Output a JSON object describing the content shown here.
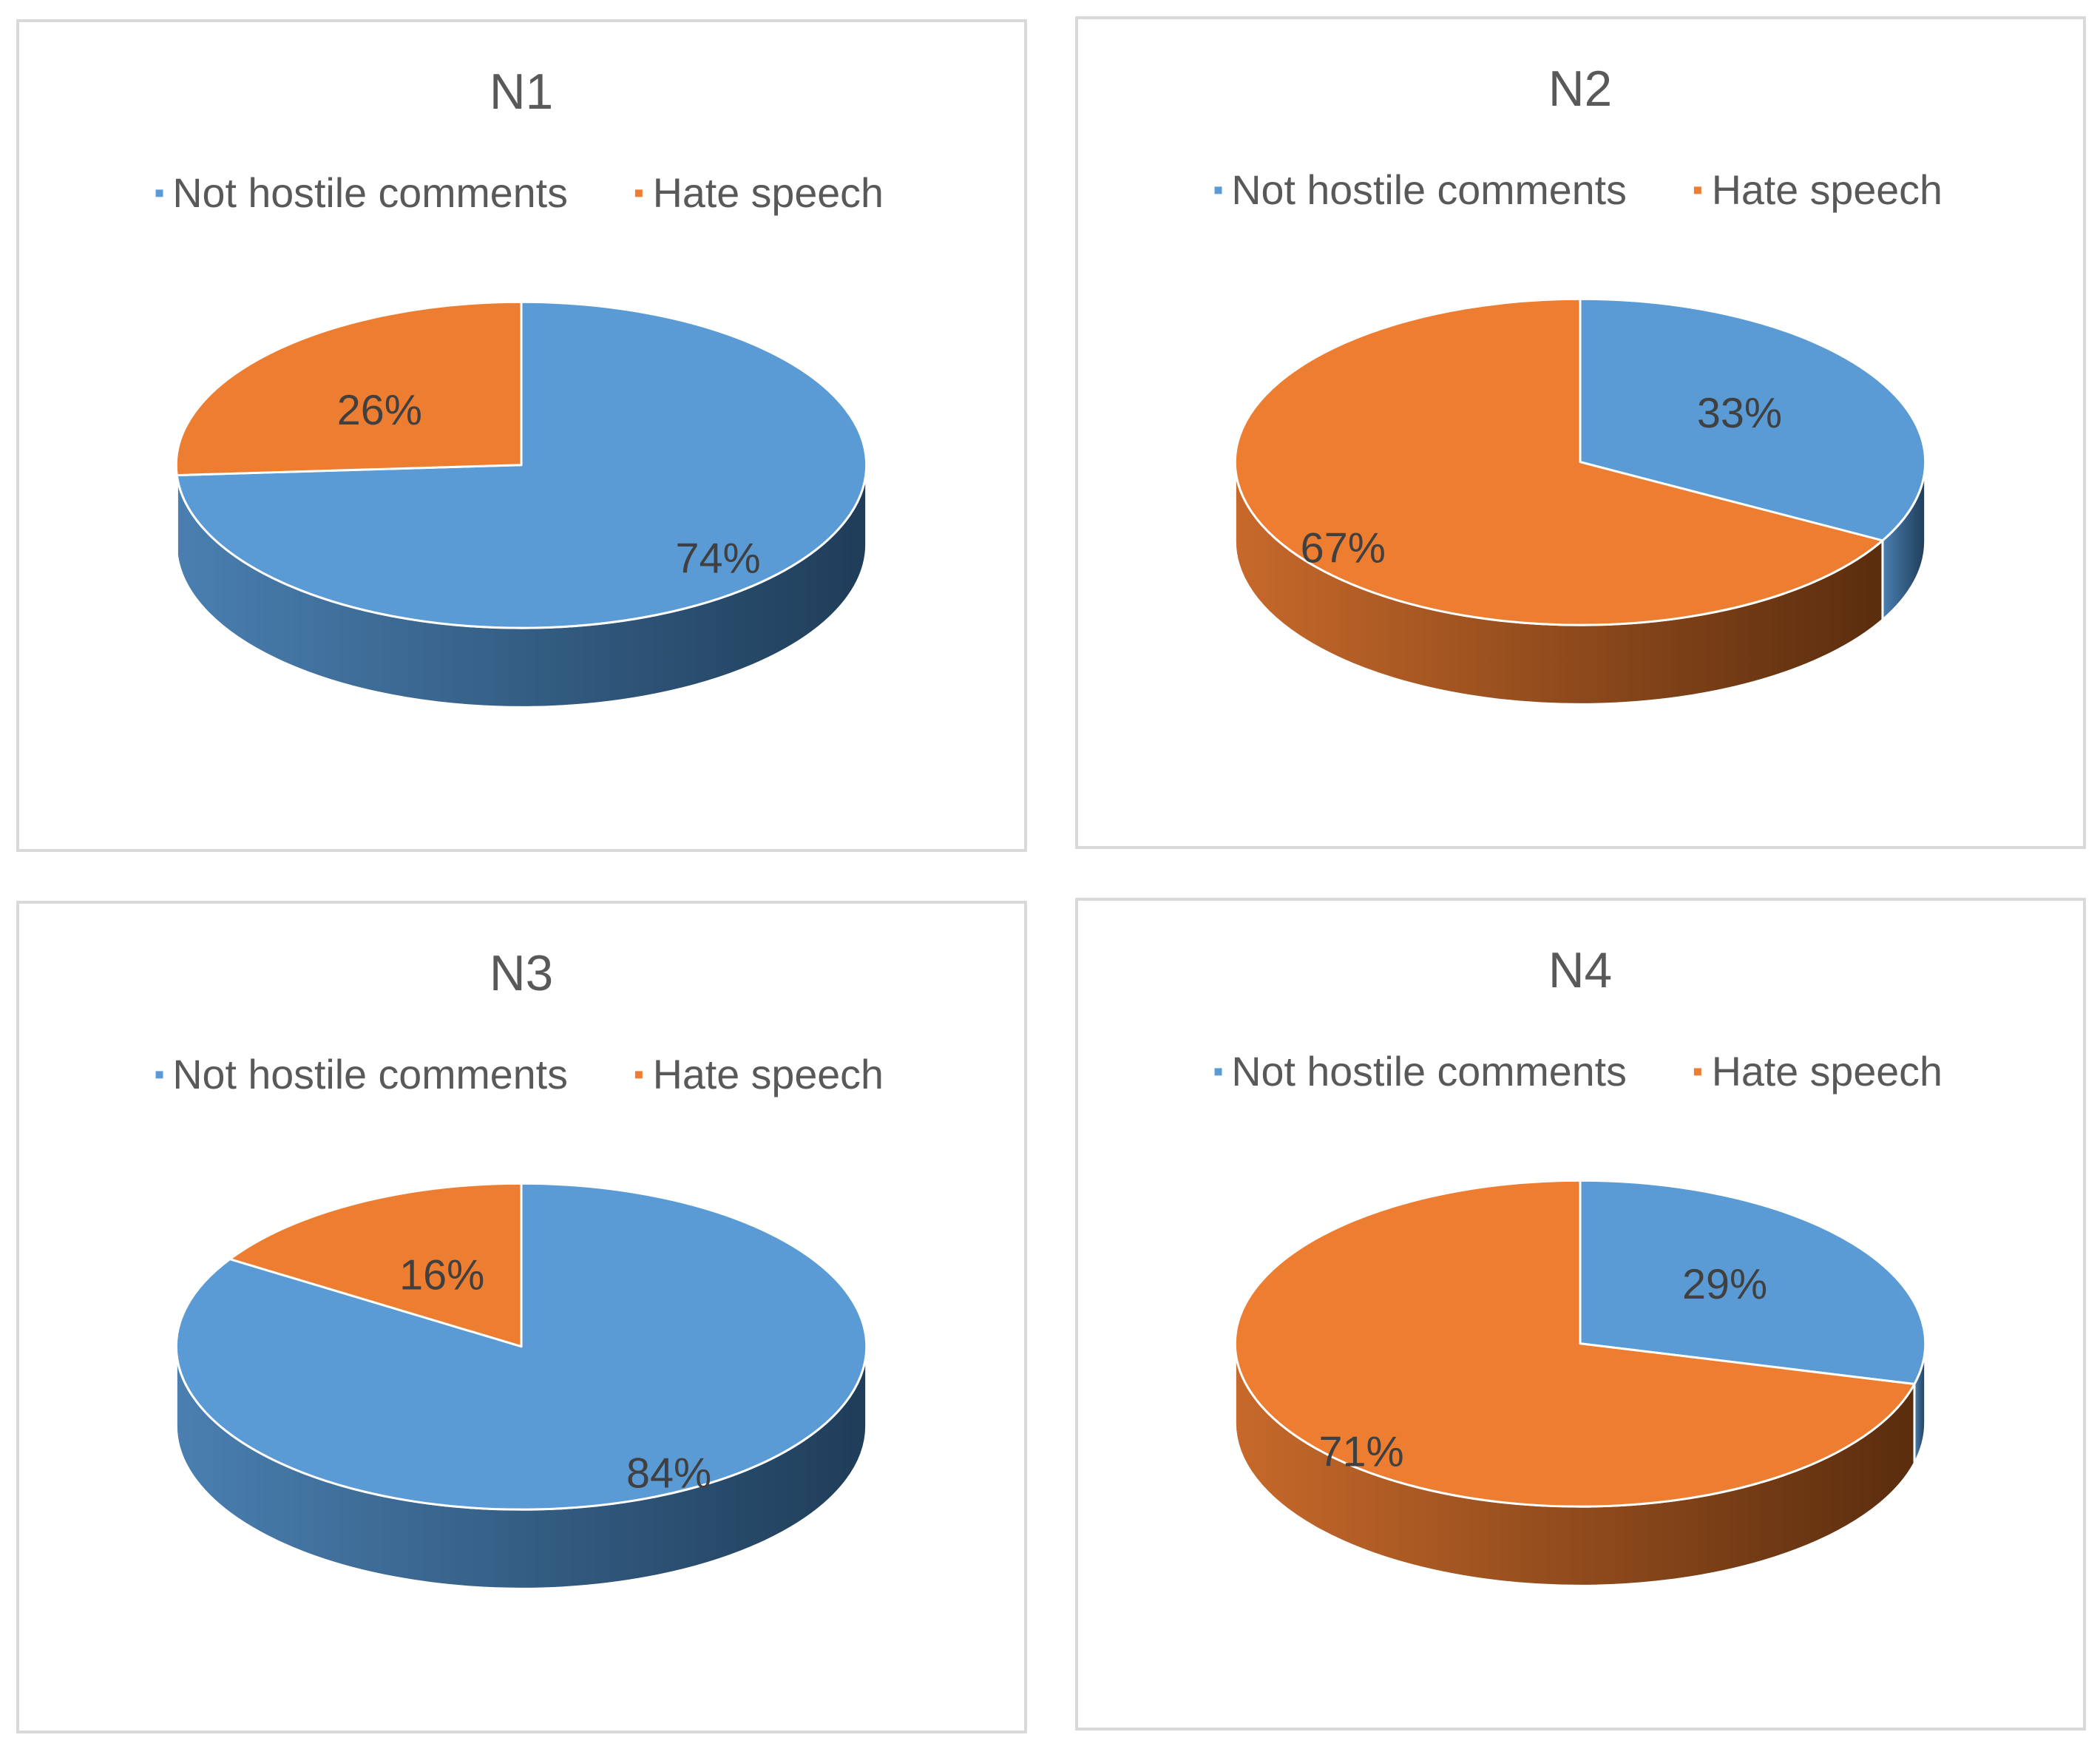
{
  "colors": {
    "not_hostile": "#5b9bd5",
    "not_hostile_side_light": "#4a7fb0",
    "not_hostile_side_dark": "#1f3d59",
    "hate": "#ed7d31",
    "hate_side_light": "#c7692b",
    "hate_side_dark": "#5a2d0e"
  },
  "chart_data": [
    {
      "type": "pie",
      "title": "N1",
      "legend": [
        "Not hostile comments",
        "Hate speech"
      ],
      "legend_position": "top",
      "categories": [
        "Not hostile comments",
        "Hate speech"
      ],
      "values": [
        74,
        26
      ],
      "labels": [
        "74%",
        "26%"
      ]
    },
    {
      "type": "pie",
      "title": "N2",
      "legend": [
        "Not hostile comments",
        "Hate speech"
      ],
      "legend_position": "top",
      "categories": [
        "Not hostile comments",
        "Hate speech"
      ],
      "values": [
        33,
        67
      ],
      "labels": [
        "33%",
        "67%"
      ]
    },
    {
      "type": "pie",
      "title": "N3",
      "legend": [
        "Not hostile comments",
        "Hate speech"
      ],
      "legend_position": "top",
      "categories": [
        "Not hostile comments",
        "Hate speech"
      ],
      "values": [
        84,
        16
      ],
      "labels": [
        "84%",
        "16%"
      ]
    },
    {
      "type": "pie",
      "title": "N4",
      "legend": [
        "Not hostile comments",
        "Hate speech"
      ],
      "legend_position": "top",
      "categories": [
        "Not hostile comments",
        "Hate speech"
      ],
      "values": [
        29,
        71
      ],
      "labels": [
        "29%",
        "71%"
      ]
    }
  ]
}
